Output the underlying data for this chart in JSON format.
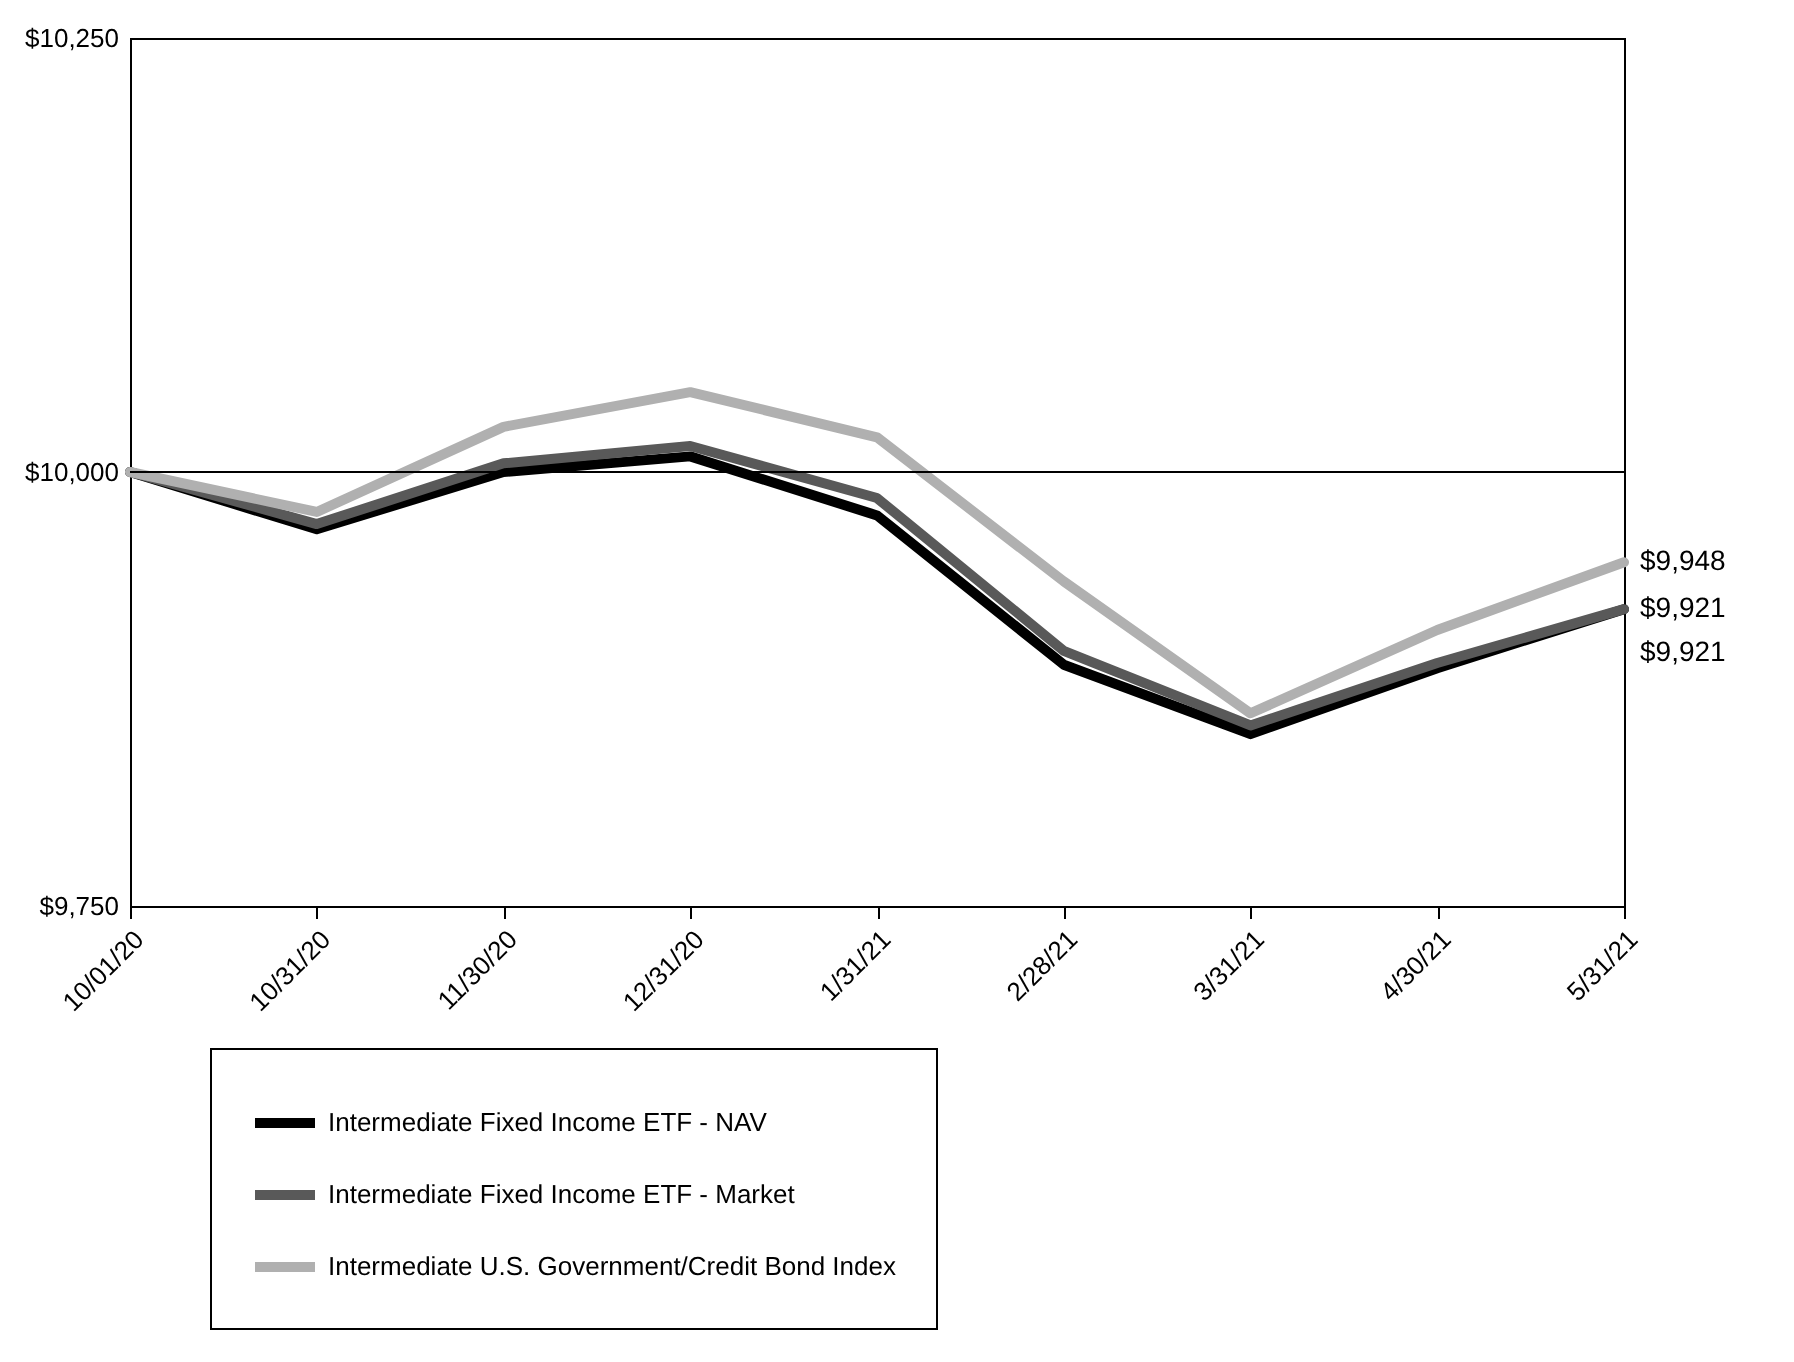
{
  "chart_data": {
    "type": "line",
    "categories": [
      "10/01/20",
      "10/31/20",
      "11/30/20",
      "12/31/20",
      "1/31/21",
      "2/28/21",
      "3/31/21",
      "4/30/21",
      "5/31/21"
    ],
    "series": [
      {
        "name": "Intermediate Fixed Income ETF - NAV",
        "color": "#000000",
        "values": [
          10000,
          9967,
          10000,
          10009,
          9975,
          9889,
          9849,
          9887,
          9921
        ],
        "value_labels": [
          null,
          null,
          null,
          null,
          null,
          null,
          null,
          null,
          "$9,921"
        ]
      },
      {
        "name": "Intermediate Fixed Income ETF - Market",
        "color": "#595959",
        "values": [
          10000,
          9970,
          10005,
          10015,
          9985,
          9897,
          9854,
          9890,
          9921
        ],
        "value_labels": [
          null,
          null,
          null,
          null,
          null,
          null,
          null,
          null,
          "$9,921"
        ]
      },
      {
        "name": "Intermediate U.S. Government/Credit Bond Index",
        "color": "#b0b0b0",
        "values": [
          10000,
          9977,
          10026,
          10046,
          10020,
          9937,
          9861,
          9909,
          9948
        ],
        "value_labels": [
          null,
          null,
          null,
          null,
          null,
          null,
          null,
          null,
          "$9,948"
        ]
      }
    ],
    "ylim": [
      9750,
      10250
    ],
    "yticks": [
      {
        "value": 9750,
        "label": "$9,750"
      },
      {
        "value": 10000,
        "label": "$10,000"
      },
      {
        "value": 10250,
        "label": "$10,250"
      }
    ],
    "ref_lines": [
      {
        "axis": "y",
        "value": 10000,
        "color": "#000000"
      }
    ],
    "grid": false,
    "legend": "bottom",
    "marker": "none",
    "line_style": "solid"
  }
}
